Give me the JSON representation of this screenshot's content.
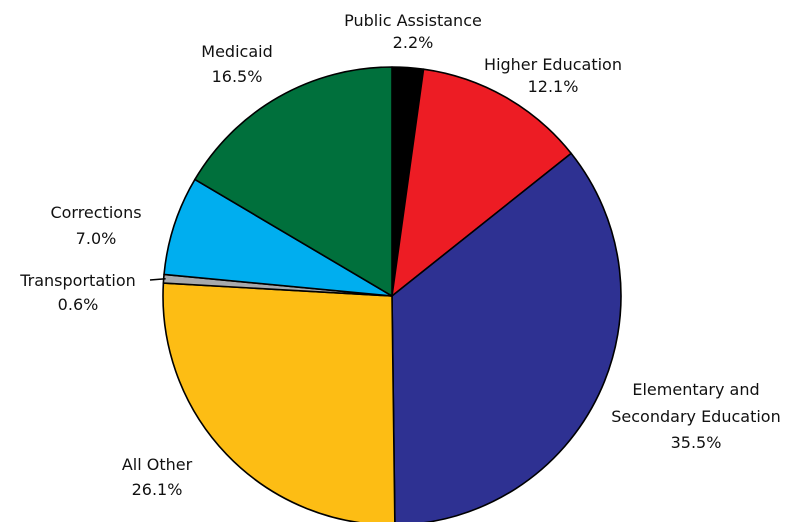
{
  "chart_data": {
    "type": "pie",
    "title": "",
    "slices": [
      {
        "name": "Public Assistance",
        "value": 2.2,
        "label": "2.2%",
        "color": "#000000"
      },
      {
        "name": "Higher Education",
        "value": 12.1,
        "label": "12.1%",
        "color": "#ED1C24"
      },
      {
        "name": "Elementary and Secondary Education",
        "name_lines": [
          "Elementary and",
          "Secondary Education"
        ],
        "value": 35.5,
        "label": "35.5%",
        "color": "#2E3192"
      },
      {
        "name": "All Other",
        "value": 26.1,
        "label": "26.1%",
        "color": "#FDBD14"
      },
      {
        "name": "Transportation",
        "value": 0.6,
        "label": "0.6%",
        "color": "#A7A9AC"
      },
      {
        "name": "Corrections",
        "value": 7.0,
        "label": "7.0%",
        "color": "#00AEEF"
      },
      {
        "name": "Medicaid",
        "value": 16.5,
        "label": "16.5%",
        "color": "#00703C"
      }
    ]
  }
}
